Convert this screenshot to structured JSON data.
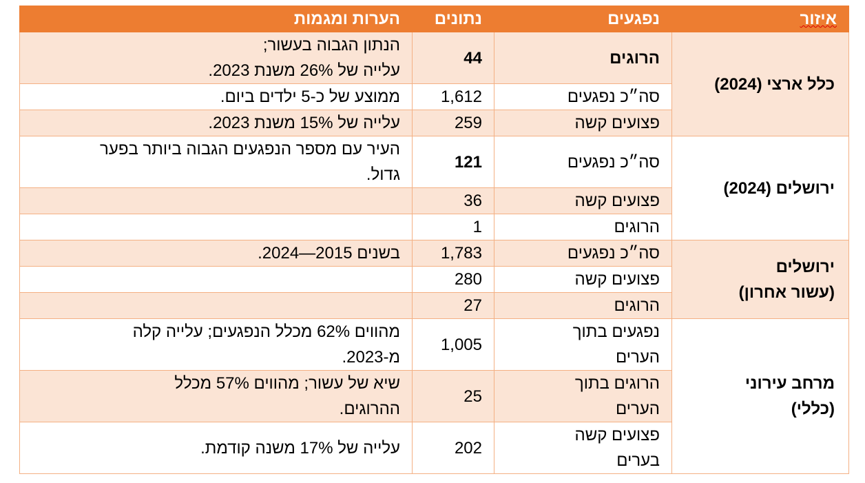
{
  "table": {
    "header": [
      "איזור",
      "נפגעים",
      "נתונים",
      "הערות ומגמות"
    ],
    "groups": [
      {
        "region": "כלל ארצי (2024)",
        "rows": [
          {
            "injured": "הרוגים",
            "data": "44",
            "notes": [
              "הנתון הגבוה בעשור;",
              "עלייה של 26% משנת 2023."
            ]
          },
          {
            "injured": "סה״כ נפגעים",
            "data": "1,612",
            "notes": [
              "ממוצע של כ-5 ילדים ביום."
            ]
          },
          {
            "injured": "פצועים קשה",
            "data": "259",
            "notes": [
              "עלייה של 15% משנת 2023."
            ]
          }
        ]
      },
      {
        "region": "ירושלים (2024)",
        "rows": [
          {
            "injured": "סה״כ נפגעים",
            "data": "121",
            "notes": [
              "העיר עם מספר הנפגעים הגבוה ביותר בפער",
              "גדול."
            ]
          },
          {
            "injured": "פצועים קשה",
            "data": "36"
          },
          {
            "injured": "הרוגים",
            "data": "1"
          }
        ]
      },
      {
        "region": [
          "ירושלים",
          "(עשור אחרון)"
        ],
        "rows": [
          {
            "injured": "סה״כ נפגעים",
            "data": "1,783",
            "notes": [
              "בשנים 2015—2024."
            ]
          },
          {
            "injured": "פצועים קשה",
            "data": "280"
          },
          {
            "injured": "הרוגים",
            "data": "27"
          }
        ]
      },
      {
        "region": [
          "מרחב עירוני",
          "(כללי)"
        ],
        "rows": [
          {
            "injured": [
              "נפגעים בתוך",
              "הערים"
            ],
            "data": "1,005",
            "notes": [
              "מהווים 62% מכלל הנפגעים; עלייה קלה",
              "מ-2023."
            ]
          },
          {
            "injured": [
              "הרוגים בתוך",
              "הערים"
            ],
            "data": "25",
            "notes": [
              "שיא של עשור; מהווים 57% מכלל",
              "ההרוגים."
            ]
          },
          {
            "injured": [
              "פצועים קשה",
              "בערים"
            ],
            "data": "202",
            "notes": [
              "עלייה של 17% משנה קודמת."
            ]
          }
        ]
      }
    ]
  }
}
